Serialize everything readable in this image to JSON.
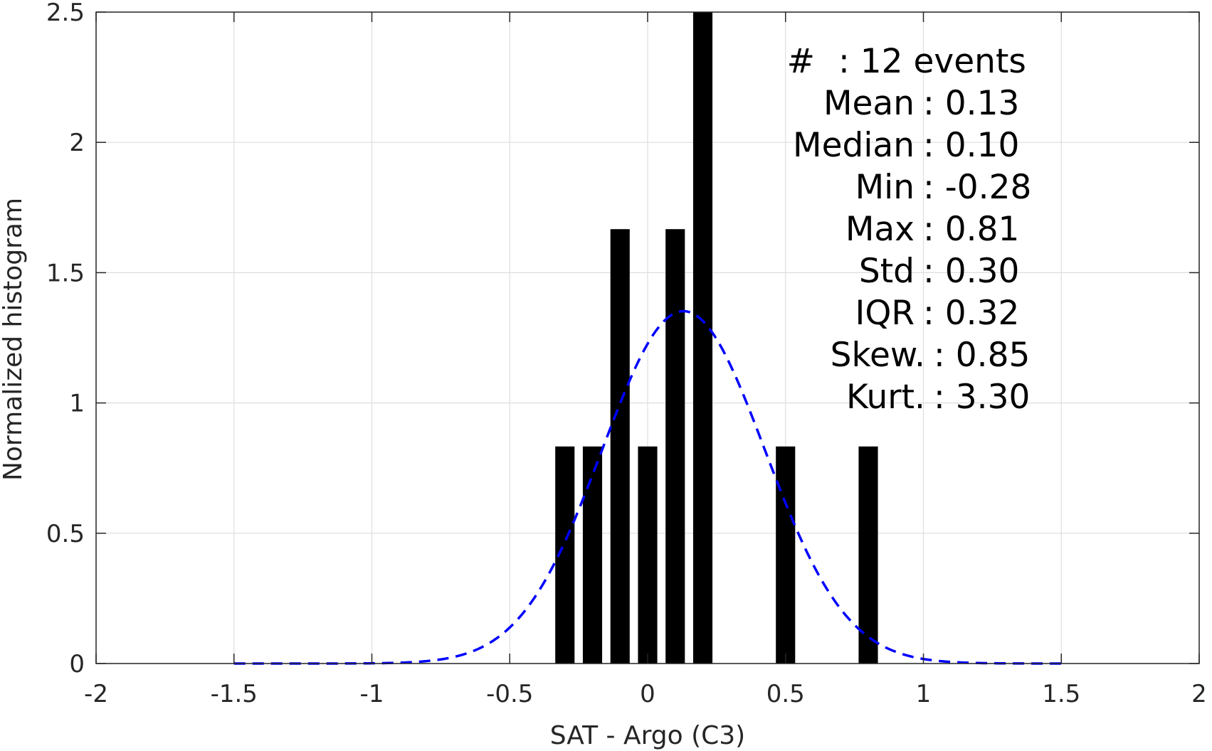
{
  "chart_data": {
    "type": "bar",
    "xlabel": "SAT - Argo (C3)",
    "ylabel": "Normalized histogram",
    "xlim": [
      -2,
      2
    ],
    "ylim": [
      0,
      2.5
    ],
    "xticks": [
      "-2",
      "-1.5",
      "-1",
      "-0.5",
      "0",
      "0.5",
      "1",
      "1.5",
      "2"
    ],
    "yticks": [
      "0",
      "0.5",
      "1",
      "1.5",
      "2",
      "2.5"
    ],
    "grid": true,
    "bar_color": "#000000",
    "bars": [
      {
        "x": -0.3,
        "value": 0.833
      },
      {
        "x": -0.2,
        "value": 0.833
      },
      {
        "x": -0.1,
        "value": 1.667
      },
      {
        "x": 0.0,
        "value": 0.833
      },
      {
        "x": 0.1,
        "value": 1.667
      },
      {
        "x": 0.2,
        "value": 2.5
      },
      {
        "x": 0.5,
        "value": 0.833
      },
      {
        "x": 0.8,
        "value": 0.833
      }
    ],
    "bar_width": 0.07,
    "fit_curve": {
      "style": "dashed",
      "color": "#0000ff",
      "mean": 0.13,
      "std": 0.295,
      "x_range": [
        -1.5,
        1.5
      ]
    },
    "annotation": {
      "placement": "top-right",
      "lines": [
        {
          "label": "#",
          "value": ": 12 events"
        },
        {
          "label": "Mean",
          "value": ": 0.13"
        },
        {
          "label": "Median",
          "value": ": 0.10"
        },
        {
          "label": "Min",
          "value": ": -0.28"
        },
        {
          "label": "Max",
          "value": ": 0.81"
        },
        {
          "label": "Std",
          "value": ": 0.30"
        },
        {
          "label": "IQR",
          "value": ": 0.32"
        },
        {
          "label": "Skew.",
          "value": ": 0.85"
        },
        {
          "label": "Kurt.",
          "value": ": 3.30"
        }
      ]
    }
  }
}
